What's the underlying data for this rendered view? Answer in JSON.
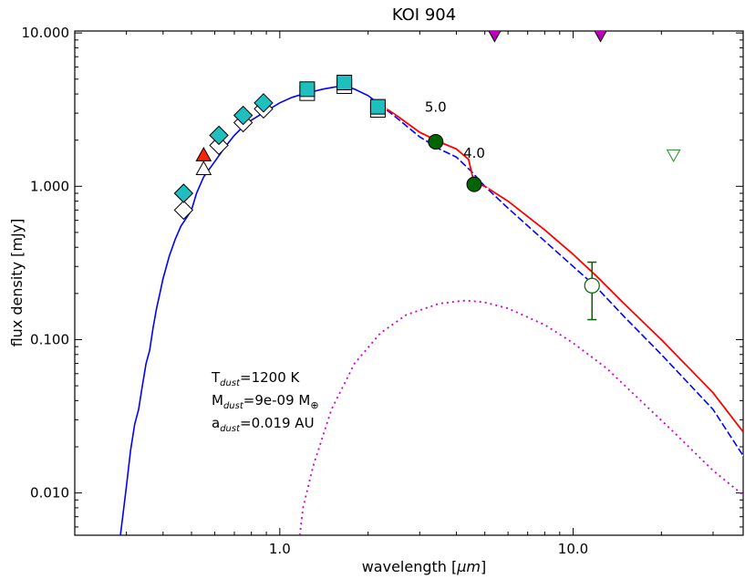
{
  "chart_data": {
    "type": "scatter",
    "title": "KOI 904",
    "xlabel_prefix": "wavelength [",
    "xlabel_unit": "μm",
    "xlabel_suffix": "]",
    "ylabel": "flux density [mJy]",
    "x_scale": "log",
    "y_scale": "log",
    "xlim": [
      0.2,
      38
    ],
    "ylim": [
      0.0053,
      10.3
    ],
    "x_ticks": [
      {
        "value": 1.0,
        "label": "1.0"
      },
      {
        "value": 10.0,
        "label": "10.0"
      }
    ],
    "y_ticks": [
      {
        "value": 0.01,
        "label": "0.010"
      },
      {
        "value": 0.1,
        "label": "0.100"
      },
      {
        "value": 1.0,
        "label": "1.000"
      },
      {
        "value": 10.0,
        "label": "10.000"
      }
    ],
    "grid": false,
    "colors": {
      "photosphere": "#0000ff",
      "total_model": "#ff0000",
      "dust": "#cc00cc",
      "observed": "#1fbfbf",
      "red_triangle": "#ff2200",
      "wise": "#006400",
      "limit_purple": "#bb00bb",
      "limit_green": "#228b22"
    },
    "annotations": [
      {
        "text": "5.0",
        "x": 3.4,
        "y": 2.9
      },
      {
        "text": "4.0",
        "x": 4.6,
        "y": 1.45
      }
    ],
    "params": [
      {
        "base": "T",
        "sub": "dust",
        "rest": "=1200 K",
        "sym": ""
      },
      {
        "base": "M",
        "sub": "dust",
        "rest": "=9e-09 M",
        "sym": "⊕"
      },
      {
        "base": "a",
        "sub": "dust",
        "rest": "=0.019 AU",
        "sym": ""
      }
    ],
    "series": [
      {
        "role": "stellar photosphere",
        "style": "solid",
        "points": [
          [
            0.285,
            0.005
          ],
          [
            0.29,
            0.0065
          ],
          [
            0.3,
            0.011
          ],
          [
            0.31,
            0.019
          ],
          [
            0.32,
            0.028
          ],
          [
            0.33,
            0.035
          ],
          [
            0.34,
            0.05
          ],
          [
            0.35,
            0.07
          ],
          [
            0.36,
            0.085
          ],
          [
            0.37,
            0.12
          ],
          [
            0.38,
            0.16
          ],
          [
            0.39,
            0.2
          ],
          [
            0.4,
            0.25
          ],
          [
            0.42,
            0.35
          ],
          [
            0.44,
            0.45
          ],
          [
            0.46,
            0.55
          ],
          [
            0.48,
            0.62
          ],
          [
            0.5,
            0.7
          ],
          [
            0.52,
            0.9
          ],
          [
            0.55,
            1.15
          ],
          [
            0.6,
            1.45
          ],
          [
            0.65,
            1.8
          ],
          [
            0.7,
            2.15
          ],
          [
            0.75,
            2.45
          ],
          [
            0.8,
            2.7
          ],
          [
            0.9,
            3.1
          ],
          [
            1.0,
            3.5
          ],
          [
            1.1,
            3.8
          ],
          [
            1.2,
            4.0
          ],
          [
            1.3,
            4.15
          ],
          [
            1.4,
            4.3
          ],
          [
            1.5,
            4.4
          ],
          [
            1.6,
            4.5
          ],
          [
            1.7,
            4.45
          ],
          [
            1.8,
            4.3
          ],
          [
            2.0,
            3.9
          ],
          [
            2.2,
            3.4
          ],
          [
            2.5,
            2.8
          ],
          [
            3.0,
            2.1
          ],
          [
            3.5,
            1.75
          ],
          [
            4.0,
            1.55
          ],
          [
            4.5,
            1.25
          ],
          [
            5.0,
            1.0
          ],
          [
            6.0,
            0.72
          ],
          [
            8.0,
            0.44
          ],
          [
            10.0,
            0.3
          ],
          [
            12.0,
            0.22
          ],
          [
            15.0,
            0.14
          ],
          [
            20.0,
            0.08
          ],
          [
            30.0,
            0.035
          ],
          [
            38.0,
            0.0175
          ]
        ]
      },
      {
        "role": "photosphere plus dust",
        "style": "solid",
        "points": [
          [
            2.2,
            3.4
          ],
          [
            2.5,
            2.9
          ],
          [
            3.0,
            2.25
          ],
          [
            3.5,
            1.95
          ],
          [
            4.0,
            1.75
          ],
          [
            4.4,
            1.5
          ],
          [
            4.6,
            1.05
          ],
          [
            5.0,
            1.0
          ],
          [
            6.0,
            0.8
          ],
          [
            8.0,
            0.52
          ],
          [
            10.0,
            0.36
          ],
          [
            12.0,
            0.26
          ],
          [
            15.0,
            0.17
          ],
          [
            20.0,
            0.1
          ],
          [
            30.0,
            0.045
          ],
          [
            38.0,
            0.025
          ]
        ]
      },
      {
        "role": "dust component",
        "style": "dotted",
        "points": [
          [
            1.17,
            0.0053
          ],
          [
            1.2,
            0.008
          ],
          [
            1.3,
            0.015
          ],
          [
            1.5,
            0.035
          ],
          [
            1.8,
            0.07
          ],
          [
            2.2,
            0.11
          ],
          [
            2.7,
            0.145
          ],
          [
            3.5,
            0.172
          ],
          [
            4.3,
            0.18
          ],
          [
            5.0,
            0.175
          ],
          [
            6.0,
            0.16
          ],
          [
            8.0,
            0.125
          ],
          [
            10.0,
            0.095
          ],
          [
            13.0,
            0.065
          ],
          [
            17.0,
            0.04
          ],
          [
            22.0,
            0.025
          ],
          [
            30.0,
            0.014
          ],
          [
            38.0,
            0.0097
          ]
        ]
      }
    ],
    "observed_diamonds": [
      [
        0.47,
        0.9
      ],
      [
        0.62,
        2.15
      ],
      [
        0.75,
        2.9
      ],
      [
        0.88,
        3.5
      ]
    ],
    "model_diamonds": [
      [
        0.47,
        0.7
      ],
      [
        0.62,
        1.85
      ],
      [
        0.75,
        2.6
      ],
      [
        0.88,
        3.2
      ]
    ],
    "red_triangle": [
      [
        0.55,
        1.6
      ]
    ],
    "model_triangle": [
      [
        0.55,
        1.3
      ]
    ],
    "observed_squares": [
      [
        1.24,
        4.3
      ],
      [
        1.66,
        4.75
      ],
      [
        2.16,
        3.3
      ]
    ],
    "model_squares": [
      [
        1.24,
        4.05
      ],
      [
        1.66,
        4.5
      ],
      [
        2.16,
        3.15
      ]
    ],
    "wise_detections": [
      [
        3.4,
        1.95
      ],
      [
        4.6,
        1.03
      ]
    ],
    "wise_open_point": {
      "x": 11.6,
      "y": 0.225,
      "err_low": 0.135,
      "err_high": 0.32
    },
    "upper_limits_purple": [
      [
        5.4,
        9.8
      ],
      [
        12.4,
        9.8
      ]
    ],
    "upper_limit_green": [
      [
        22.0,
        1.6
      ]
    ]
  }
}
